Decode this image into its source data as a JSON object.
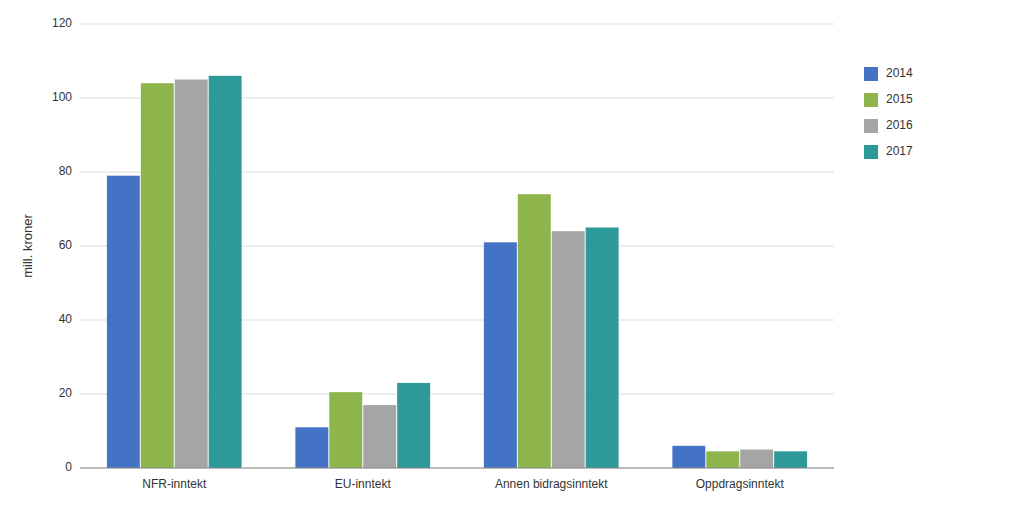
{
  "chart_data": {
    "type": "bar",
    "ylabel": "mill. kroner",
    "categories": [
      "NFR-inntekt",
      "EU-inntekt",
      "Annen bidragsinntekt",
      "Oppdragsinntekt"
    ],
    "series": [
      {
        "name": "2014",
        "color": "#4472C4",
        "values": [
          79,
          11,
          61,
          6
        ]
      },
      {
        "name": "2015",
        "color": "#8DB54B",
        "values": [
          104,
          20.5,
          74,
          4.5
        ]
      },
      {
        "name": "2016",
        "color": "#A5A5A5",
        "values": [
          105,
          17,
          64,
          5
        ]
      },
      {
        "name": "2017",
        "color": "#2E9999",
        "values": [
          106,
          23,
          65,
          4.5
        ]
      }
    ],
    "ylim": [
      0,
      120
    ],
    "yticks": [
      0,
      20,
      40,
      60,
      80,
      100,
      120
    ],
    "grid": true,
    "legend": "right"
  }
}
